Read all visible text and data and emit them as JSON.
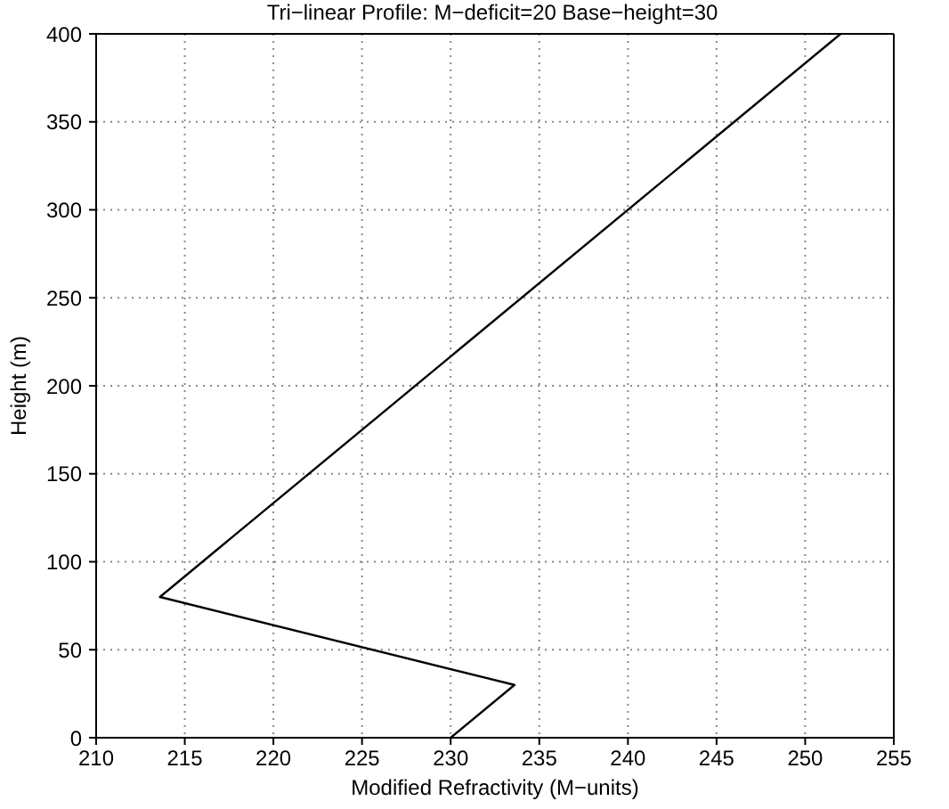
{
  "chart_data": {
    "type": "line",
    "title": "Tri−linear Profile: M−deficit=20 Base−height=30",
    "xlabel": "Modified Refractivity (M−units)",
    "ylabel": "Height (m)",
    "x": [
      230,
      233.6,
      213.6,
      252
    ],
    "series": [
      {
        "color": "#000000",
        "values": [
          0,
          30,
          80,
          400
        ]
      }
    ],
    "xlim": [
      210,
      255
    ],
    "xticks": [
      210,
      215,
      220,
      225,
      230,
      235,
      240,
      245,
      250,
      255
    ],
    "ylim": [
      0,
      400
    ],
    "yticks": [
      0,
      50,
      100,
      150,
      200,
      250,
      300,
      350,
      400
    ],
    "grid": true,
    "legend": false,
    "marker": "none",
    "line_style": "solid"
  }
}
